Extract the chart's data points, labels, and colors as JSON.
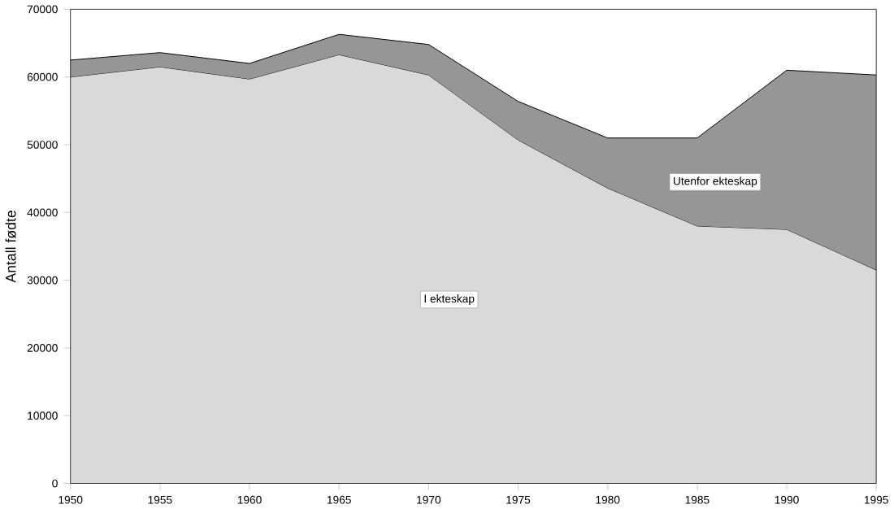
{
  "chart_data": {
    "type": "area",
    "stacked": true,
    "ylabel": "Antall fødte",
    "x": [
      1950,
      1955,
      1960,
      1965,
      1970,
      1975,
      1980,
      1985,
      1990,
      1995
    ],
    "series": [
      {
        "name": "I ekteskap",
        "color": "#d9d9d9",
        "values": [
          60000,
          61500,
          59700,
          63300,
          60300,
          50700,
          43600,
          38000,
          37500,
          31500
        ]
      },
      {
        "name": "Utenfor ekteskap",
        "color": "#969696",
        "values": [
          2500,
          2100,
          2300,
          3000,
          4500,
          5700,
          7400,
          13000,
          23500,
          28800
        ]
      }
    ],
    "xlim": [
      1950,
      1995
    ],
    "xticks": [
      1950,
      1955,
      1960,
      1965,
      1970,
      1975,
      1980,
      1985,
      1990,
      1995
    ],
    "ylim": [
      0,
      70000
    ],
    "yticks": [
      0,
      10000,
      20000,
      30000,
      40000,
      50000,
      60000,
      70000
    ],
    "grid": false,
    "legend": false
  }
}
